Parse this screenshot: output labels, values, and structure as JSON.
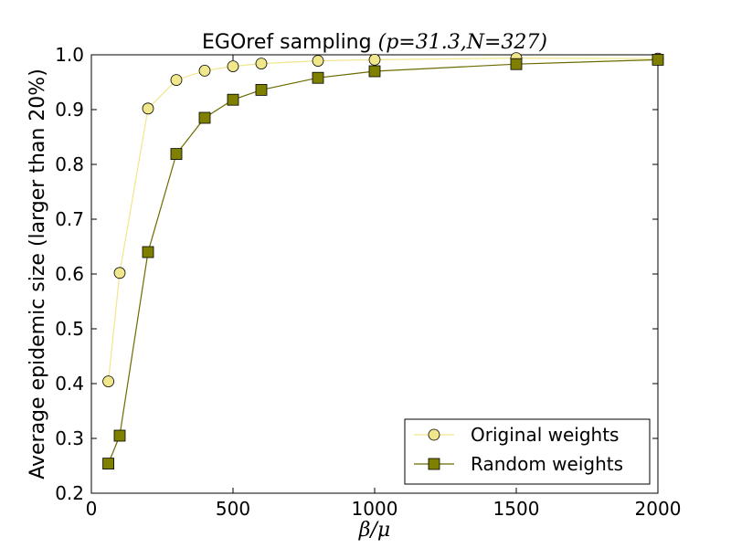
{
  "chart_data": {
    "type": "line",
    "title_prefix": "EGOref sampling",
    "title_math_open": "(",
    "title_math_p": "p",
    "title_math_eq1": "=31.3,",
    "title_math_n": "N",
    "title_math_eq2": "=327",
    "title_math_close": ")",
    "xlabel_beta": "β",
    "xlabel_slash": "/",
    "xlabel_mu": "μ",
    "ylabel": "Average epidemic size (larger than 20%)",
    "xlim": [
      0,
      2000
    ],
    "ylim": [
      0.2,
      1.0
    ],
    "xticks": [
      0,
      500,
      1000,
      1500,
      2000
    ],
    "yticks": [
      0.2,
      0.3,
      0.4,
      0.5,
      0.6,
      0.7,
      0.8,
      0.9,
      1.0
    ],
    "ytick_labels": [
      "0.2",
      "0.3",
      "0.4",
      "0.5",
      "0.6",
      "0.7",
      "0.8",
      "0.9",
      "1.0"
    ],
    "xtick_labels": [
      "0",
      "500",
      "1000",
      "1500",
      "2000"
    ],
    "grid": false,
    "legend_position": "bottom-right",
    "series": [
      {
        "name": "Original weights",
        "marker": "circle",
        "line_color": "#f0e68c",
        "marker_fill": "#f0e68c",
        "x": [
          60,
          100,
          200,
          300,
          400,
          500,
          600,
          800,
          1000,
          1500,
          2000
        ],
        "y": [
          0.404,
          0.602,
          0.902,
          0.954,
          0.971,
          0.979,
          0.984,
          0.989,
          0.991,
          0.994,
          0.993
        ]
      },
      {
        "name": "Random weights",
        "marker": "square",
        "line_color": "#6b6b00",
        "marker_fill": "#808000",
        "x": [
          60,
          100,
          200,
          300,
          400,
          500,
          600,
          800,
          1000,
          1500,
          2000
        ],
        "y": [
          0.254,
          0.305,
          0.64,
          0.819,
          0.885,
          0.918,
          0.936,
          0.958,
          0.97,
          0.983,
          0.991
        ]
      }
    ]
  }
}
